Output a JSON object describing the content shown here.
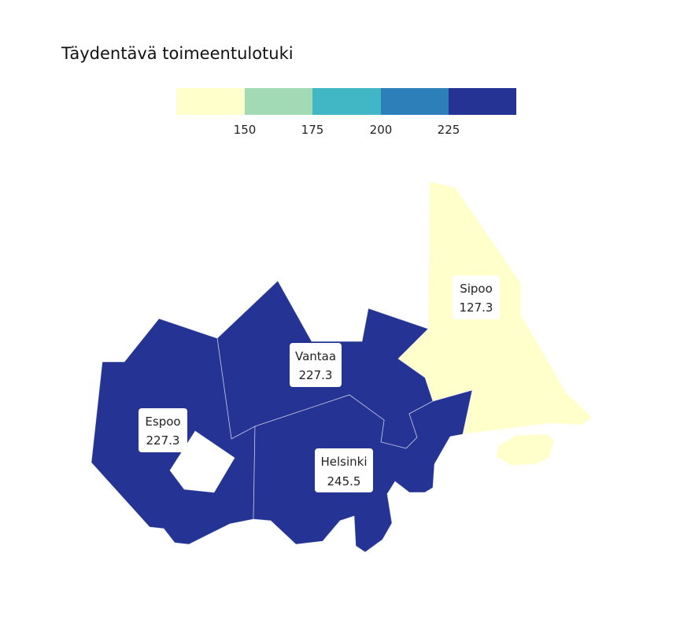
{
  "title": "Täydentävä toimeentulotuki",
  "legend": {
    "ticks": [
      "150",
      "175",
      "200",
      "225"
    ],
    "colors": [
      "#ffffcc",
      "#a1dab4",
      "#41b6c4",
      "#2c7fb8",
      "#253494"
    ]
  },
  "regions": [
    {
      "name": "Sipoo",
      "value": "127.3",
      "color": "#ffffcc"
    },
    {
      "name": "Vantaa",
      "value": "227.3",
      "color": "#253494"
    },
    {
      "name": "Espoo",
      "value": "227.3",
      "color": "#253494"
    },
    {
      "name": "Helsinki",
      "value": "245.5",
      "color": "#253494"
    }
  ]
}
